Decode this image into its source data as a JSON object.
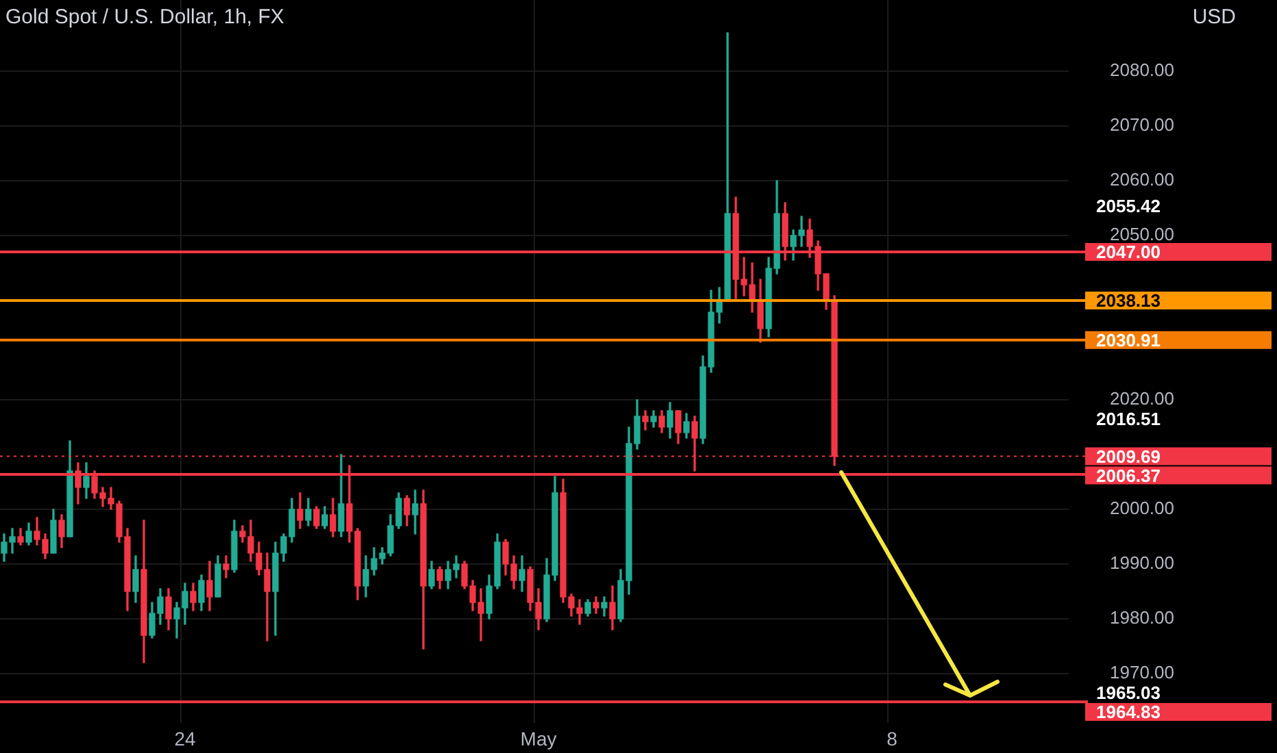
{
  "chart_data": {
    "type": "candlestick",
    "title": "Gold Spot / U.S. Dollar, 1h, FX",
    "ylabel": "USD",
    "categories": [
      null,
      null,
      null,
      null,
      null,
      null,
      null,
      null,
      null,
      null,
      null,
      null,
      null,
      null,
      null,
      null,
      null,
      null,
      null,
      null,
      null,
      null,
      "24",
      null,
      null,
      null,
      null,
      null,
      null,
      null,
      null,
      null,
      null,
      null,
      null,
      null,
      null,
      null,
      null,
      null,
      null,
      null,
      null,
      null,
      null,
      null,
      null,
      null,
      null,
      null,
      null,
      null,
      null,
      null,
      null,
      null,
      null,
      null,
      null,
      null,
      null,
      null,
      null,
      null,
      null,
      "May",
      null,
      null,
      null,
      null,
      null,
      null,
      null,
      null,
      null,
      null,
      null,
      null,
      null,
      null,
      null,
      null,
      null,
      null,
      null,
      null,
      null,
      null,
      null,
      null,
      null,
      null,
      null,
      null,
      null,
      null,
      null,
      null,
      null,
      null,
      null,
      null,
      null,
      null,
      null,
      null,
      null,
      null,
      "8",
      null,
      null,
      null,
      null,
      null,
      null,
      null,
      null,
      null,
      null,
      null,
      null,
      null,
      null,
      null,
      null,
      null,
      null,
      null,
      null,
      null
    ],
    "ohlc": [
      [
        1992,
        1995.5,
        1990.5,
        1994
      ],
      [
        1994,
        1996.5,
        1992,
        1995
      ],
      [
        1995,
        1996.5,
        1993.5,
        1994
      ],
      [
        1994,
        1997.5,
        1993.5,
        1996
      ],
      [
        1996,
        1998.5,
        1993.5,
        1994.5
      ],
      [
        1994.5,
        1995.5,
        1991,
        1992
      ],
      [
        1992,
        2000,
        1992,
        1998
      ],
      [
        1998,
        1999,
        1993,
        1995
      ],
      [
        1995,
        2012.5,
        1995,
        2007
      ],
      [
        2007,
        2008.5,
        2001,
        2004
      ],
      [
        2004,
        2008.5,
        2002,
        2006
      ],
      [
        2006,
        2007,
        2002,
        2003
      ],
      [
        2003,
        2004,
        2000.5,
        2002
      ],
      [
        2002,
        2004,
        2000,
        2001
      ],
      [
        2001,
        2001.5,
        1994,
        1995
      ],
      [
        1995,
        1996.5,
        1981.5,
        1985
      ],
      [
        1985,
        1991.5,
        1983,
        1989
      ],
      [
        1989,
        1998,
        1972,
        1977
      ],
      [
        1977,
        1983,
        1976.5,
        1981
      ],
      [
        1981,
        1985.5,
        1979,
        1984
      ],
      [
        1984,
        1985.5,
        1978,
        1980
      ],
      [
        1980,
        1983,
        1976.5,
        1982
      ],
      [
        1982,
        1986.5,
        1979,
        1985
      ],
      [
        1985,
        1986.5,
        1981.5,
        1983
      ],
      [
        1983,
        1988,
        1981.5,
        1987
      ],
      [
        1987,
        1990.5,
        1981.5,
        1984
      ],
      [
        1984,
        1991.5,
        1984,
        1990
      ],
      [
        1990,
        1991.5,
        1987.5,
        1989
      ],
      [
        1989,
        1998,
        1988.5,
        1996
      ],
      [
        1996,
        1997,
        1994,
        1995
      ],
      [
        1995,
        1998,
        1990.5,
        1992
      ],
      [
        1992,
        1994,
        1988,
        1989
      ],
      [
        1989,
        1992,
        1976,
        1985
      ],
      [
        1985,
        1994,
        1977,
        1992
      ],
      [
        1992,
        1995.5,
        1990.5,
        1995
      ],
      [
        1995,
        2002,
        1994,
        2000
      ],
      [
        2000,
        2003,
        1996.5,
        1998
      ],
      [
        1998,
        2002,
        1997,
        2000
      ],
      [
        2000,
        2000.5,
        1996.5,
        1997
      ],
      [
        1997,
        2000.5,
        1996.5,
        1999
      ],
      [
        1999,
        2002,
        1995,
        1996
      ],
      [
        1996,
        2010,
        1995,
        2001
      ],
      [
        2001,
        2008,
        1994,
        1996
      ],
      [
        1996,
        1996.5,
        1983.5,
        1986
      ],
      [
        1986,
        1991.5,
        1984,
        1989
      ],
      [
        1989,
        1993,
        1988,
        1991
      ],
      [
        1991,
        1993,
        1990,
        1992
      ],
      [
        1992,
        1999,
        1991.5,
        1997
      ],
      [
        1997,
        2003,
        1996.5,
        2002
      ],
      [
        2002,
        2002.5,
        1997,
        1999
      ],
      [
        1999,
        2003.5,
        1995.5,
        2001
      ],
      [
        2001,
        2003.5,
        1974.5,
        1986
      ],
      [
        1986,
        1990.5,
        1985.5,
        1989
      ],
      [
        1989,
        1989.5,
        1985.5,
        1987
      ],
      [
        1987,
        1990.5,
        1985.5,
        1989
      ],
      [
        1989,
        1991.5,
        1987.5,
        1990
      ],
      [
        1990,
        1990.5,
        1985.5,
        1986
      ],
      [
        1986,
        1987,
        1981.5,
        1983
      ],
      [
        1983,
        1985.5,
        1976,
        1981
      ],
      [
        1981,
        1988,
        1980,
        1986
      ],
      [
        1986,
        1995.5,
        1985.5,
        1994
      ],
      [
        1994,
        1994.5,
        1988,
        1990
      ],
      [
        1990,
        1991.5,
        1985.5,
        1987
      ],
      [
        1987,
        1991.5,
        1985,
        1989
      ],
      [
        1989,
        1989.5,
        1981.5,
        1983
      ],
      [
        1983,
        1985.5,
        1978,
        1980
      ],
      [
        1980,
        1991,
        1979.5,
        1988
      ],
      [
        1988,
        2006,
        1987,
        2003
      ],
      [
        2003,
        2005.5,
        1983,
        1984
      ],
      [
        1984,
        1984.5,
        1980.5,
        1982
      ],
      [
        1982,
        1983.5,
        1979,
        1981
      ],
      [
        1981,
        1983.5,
        1980.5,
        1983
      ],
      [
        1983,
        1984,
        1981,
        1982
      ],
      [
        1982,
        1984,
        1980.5,
        1983
      ],
      [
        1983,
        1986,
        1978,
        1980
      ],
      [
        1980,
        1989,
        1979.5,
        1987
      ],
      [
        1987,
        2015,
        1984.5,
        2012
      ],
      [
        2012,
        2020,
        2011,
        2017
      ],
      [
        2017,
        2018,
        2014.5,
        2016
      ],
      [
        2016,
        2018,
        2015,
        2017
      ],
      [
        2017,
        2018,
        2014,
        2015
      ],
      [
        2015,
        2019.5,
        2013,
        2018
      ],
      [
        2018,
        2018,
        2012,
        2014
      ],
      [
        2014,
        2017.5,
        2013,
        2016
      ],
      [
        2016,
        2017,
        2007,
        2013
      ],
      [
        2013,
        2028,
        2012,
        2026
      ],
      [
        2026,
        2040,
        2025,
        2036
      ],
      [
        2036,
        2040.5,
        2034,
        2038
      ],
      [
        2038,
        2087,
        2038,
        2054
      ],
      [
        2054,
        2057,
        2038.5,
        2042
      ],
      [
        2042,
        2046,
        2039,
        2041
      ],
      [
        2041,
        2045,
        2036,
        2038
      ],
      [
        2038,
        2042,
        2030.5,
        2033
      ],
      [
        2033,
        2046,
        2031.5,
        2044
      ],
      [
        2044,
        2060,
        2043,
        2054
      ],
      [
        2054,
        2056,
        2045.5,
        2048
      ],
      [
        2048,
        2051,
        2045.5,
        2050
      ],
      [
        2050,
        2053.5,
        2048,
        2051
      ],
      [
        2051,
        2053,
        2046,
        2048
      ],
      [
        2048,
        2049,
        2040,
        2043
      ],
      [
        2043,
        2043,
        2036.5,
        2038
      ],
      [
        2038,
        2039,
        2008,
        2009.69
      ],
      null,
      null,
      null,
      null,
      null,
      null,
      null,
      null,
      null,
      null,
      null,
      null,
      null,
      null,
      null,
      null,
      null,
      null,
      null,
      null,
      null,
      null,
      null,
      null,
      null,
      null,
      null,
      null
    ],
    "colors": [
      "#22ab94",
      "#22ab94",
      "#f23645",
      "#22ab94",
      "#f23645",
      "#f23645",
      "#22ab94",
      "#f23645",
      "#22ab94",
      "#f23645",
      "#22ab94",
      "#f23645",
      "#f23645",
      "#f23645",
      "#f23645",
      "#f23645",
      "#22ab94",
      "#f23645",
      "#22ab94",
      "#22ab94",
      "#f23645",
      "#22ab94",
      "#22ab94",
      "#f23645",
      "#22ab94",
      "#f23645",
      "#22ab94",
      "#f23645",
      "#22ab94",
      "#f23645",
      "#f23645",
      "#f23645",
      "#f23645",
      "#22ab94",
      "#22ab94",
      "#22ab94",
      "#f23645",
      "#22ab94",
      "#f23645",
      "#22ab94",
      "#f23645",
      "#22ab94",
      "#f23645",
      "#f23645",
      "#22ab94",
      "#22ab94",
      "#22ab94",
      "#22ab94",
      "#22ab94",
      "#f23645",
      "#22ab94",
      "#f23645",
      "#22ab94",
      "#f23645",
      "#22ab94",
      "#22ab94",
      "#f23645",
      "#f23645",
      "#f23645",
      "#22ab94",
      "#22ab94",
      "#f23645",
      "#f23645",
      "#22ab94",
      "#f23645",
      "#f23645",
      "#22ab94",
      "#22ab94",
      "#f23645",
      "#f23645",
      "#f23645",
      "#22ab94",
      "#f23645",
      "#22ab94",
      "#f23645",
      "#22ab94",
      "#22ab94",
      "#22ab94",
      "#f23645",
      "#22ab94",
      "#f23645",
      "#22ab94",
      "#f23645",
      "#22ab94",
      "#f23645",
      "#22ab94",
      "#22ab94",
      "#22ab94",
      "#22ab94",
      "#f23645",
      "#f23645",
      "#f23645",
      "#f23645",
      "#22ab94",
      "#22ab94",
      "#f23645",
      "#22ab94",
      "#22ab94",
      "#f23645",
      "#f23645",
      "#f23645",
      "#f23645",
      null,
      null,
      null,
      null,
      null,
      null,
      null,
      null,
      null,
      null,
      null,
      null,
      null,
      null,
      null,
      null,
      null,
      null,
      null,
      null,
      null,
      null,
      null,
      null,
      null,
      null,
      null,
      null
    ],
    "ylim": [
      1961,
      2093
    ],
    "yticks": [
      {
        "value": 1970,
        "label": "1970.00"
      },
      {
        "value": 1980,
        "label": "1980.00"
      },
      {
        "value": 1990,
        "label": "1990.00"
      },
      {
        "value": 2000,
        "label": "2000.00"
      },
      {
        "value": 2020,
        "label": "2020.00"
      },
      {
        "value": 2050,
        "label": "2050.00"
      },
      {
        "value": 2060,
        "label": "2060.00"
      },
      {
        "value": 2070,
        "label": "2070.00"
      },
      {
        "value": 2080,
        "label": "2080.00"
      }
    ],
    "ref_lines": [
      {
        "axis": "y",
        "value": 2047,
        "label": "2047.00",
        "color": "#f23645"
      },
      {
        "axis": "y",
        "value": 2038.13,
        "label": "2038.13",
        "color": "#ff9800"
      },
      {
        "axis": "y",
        "value": 2030.91,
        "label": "2030.91",
        "color": "#f57c00"
      },
      {
        "axis": "y",
        "value": 2009.69,
        "label": "2009.69",
        "color": "#f23645",
        "line_style": "dotted"
      },
      {
        "axis": "y",
        "value": 2006.37,
        "label": "2006.37",
        "color": "#f23645"
      },
      {
        "axis": "y",
        "value": 1964.83,
        "label": "1964.83",
        "color": "#f23645"
      }
    ],
    "annotations": [
      "2055.42",
      "2016.51",
      "1965.03"
    ],
    "grid": true,
    "legend": false
  }
}
